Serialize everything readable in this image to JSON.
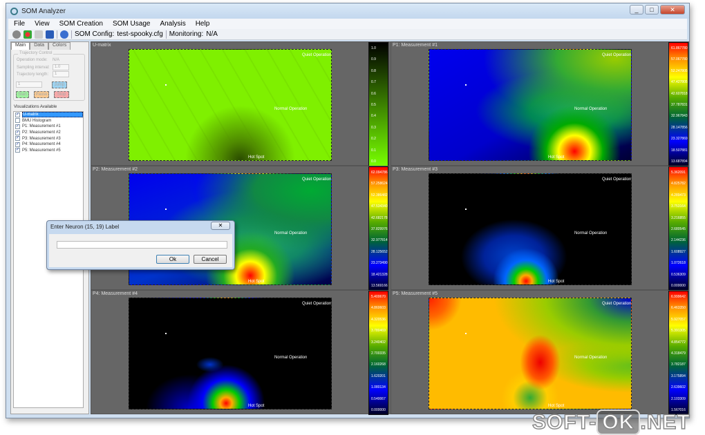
{
  "window": {
    "title": "SOM Analyzer",
    "controls": [
      "_",
      "□",
      "✕"
    ]
  },
  "menu": [
    "File",
    "View",
    "SOM Creation",
    "SOM Usage",
    "Analysis",
    "Help"
  ],
  "toolbar": {
    "config_label": "SOM Config:",
    "config_value": "test-spooky.cfg",
    "monitoring_label": "Monitoring:",
    "monitoring_value": "N/A",
    "icons": [
      "gear-icon",
      "delete-icon",
      "open-folder-icon",
      "save-icon",
      "help-icon"
    ]
  },
  "left": {
    "tabs": [
      "Main",
      "Data",
      "Colors"
    ],
    "trajectory": {
      "title": "Trajectory Control",
      "operation_mode_label": "Operation mode:",
      "operation_mode_value": "N/A",
      "sampling_label": "Sampling interval:",
      "sampling_value": "1.0",
      "length_label": "Trajectory length:",
      "length_value": "1",
      "jump_value": "1",
      "jump": "Jump",
      "start": "Start",
      "pause": "Pause",
      "stop": "Stop"
    },
    "vis_title": "Visualizations Available",
    "vis_items": [
      {
        "label": "U-matrix",
        "checked": true,
        "selected": true
      },
      {
        "label": "BMU Histogram",
        "checked": false
      },
      {
        "label": "P1: Measurement #1",
        "checked": true
      },
      {
        "label": "P2: Measurement #2",
        "checked": true
      },
      {
        "label": "P3: Measurement #3",
        "checked": true
      },
      {
        "label": "P4: Measurement #4",
        "checked": true
      },
      {
        "label": "P5: Measurement #5",
        "checked": true
      }
    ]
  },
  "map_labels": {
    "quiet": "Quiet Operation",
    "normal": "Normal Operation",
    "hot": "Hot Spot"
  },
  "panels": [
    {
      "title": "U-matrix",
      "ticks": [
        "1.0",
        "0.9",
        "0.8",
        "0.7",
        "0.6",
        "0.5",
        "0.4",
        "0.3",
        "0.2",
        "0.1",
        "0.0"
      ]
    },
    {
      "title": "P1: Measurement #1",
      "ticks": [
        "61.867780",
        "57.067780",
        "52.247805",
        "47.427805",
        "42.607818",
        "37.787831",
        "32.967843",
        "28.147856",
        "23.327869",
        "18.507881",
        "13.687894"
      ]
    },
    {
      "title": "P2: Measurement #2",
      "ticks": [
        "62.094786",
        "57.258624",
        "52.386482",
        "47.534340",
        "42.682178",
        "37.829976",
        "32.977814",
        "28.125652",
        "23.273490",
        "18.421328",
        "13.569166"
      ]
    },
    {
      "title": "P3: Measurement #3",
      "ticks": [
        "5.362091",
        "4.825782",
        "4.289473",
        "3.753164",
        "3.216855",
        "2.680545",
        "2.144236",
        "1.608927",
        "1.072618",
        "0.536309",
        "0.000000"
      ]
    },
    {
      "title": "P4: Measurement #4",
      "ticks": [
        "5.400670",
        "4.860603",
        "4.320536",
        "3.780469",
        "3.240402",
        "2.700335",
        "2.160268",
        "1.620201",
        "1.080134",
        "0.540067",
        "0.000000"
      ]
    },
    {
      "title": "P5: Measurement #5",
      "ticks": [
        "6.999642",
        "6.463350",
        "5.927057",
        "5.391305",
        "4.854772",
        "4.318479",
        "3.782187",
        "3.175894",
        "2.639602",
        "2.103309",
        "1.567016"
      ]
    }
  ],
  "dialog": {
    "title": "Enter Neuron (15, 19) Label",
    "value": "",
    "ok": "Ok",
    "cancel": "Cancel",
    "close": "✕"
  },
  "watermark": {
    "left": "SOFT-",
    "mid": "OK",
    "right": ".NET"
  }
}
